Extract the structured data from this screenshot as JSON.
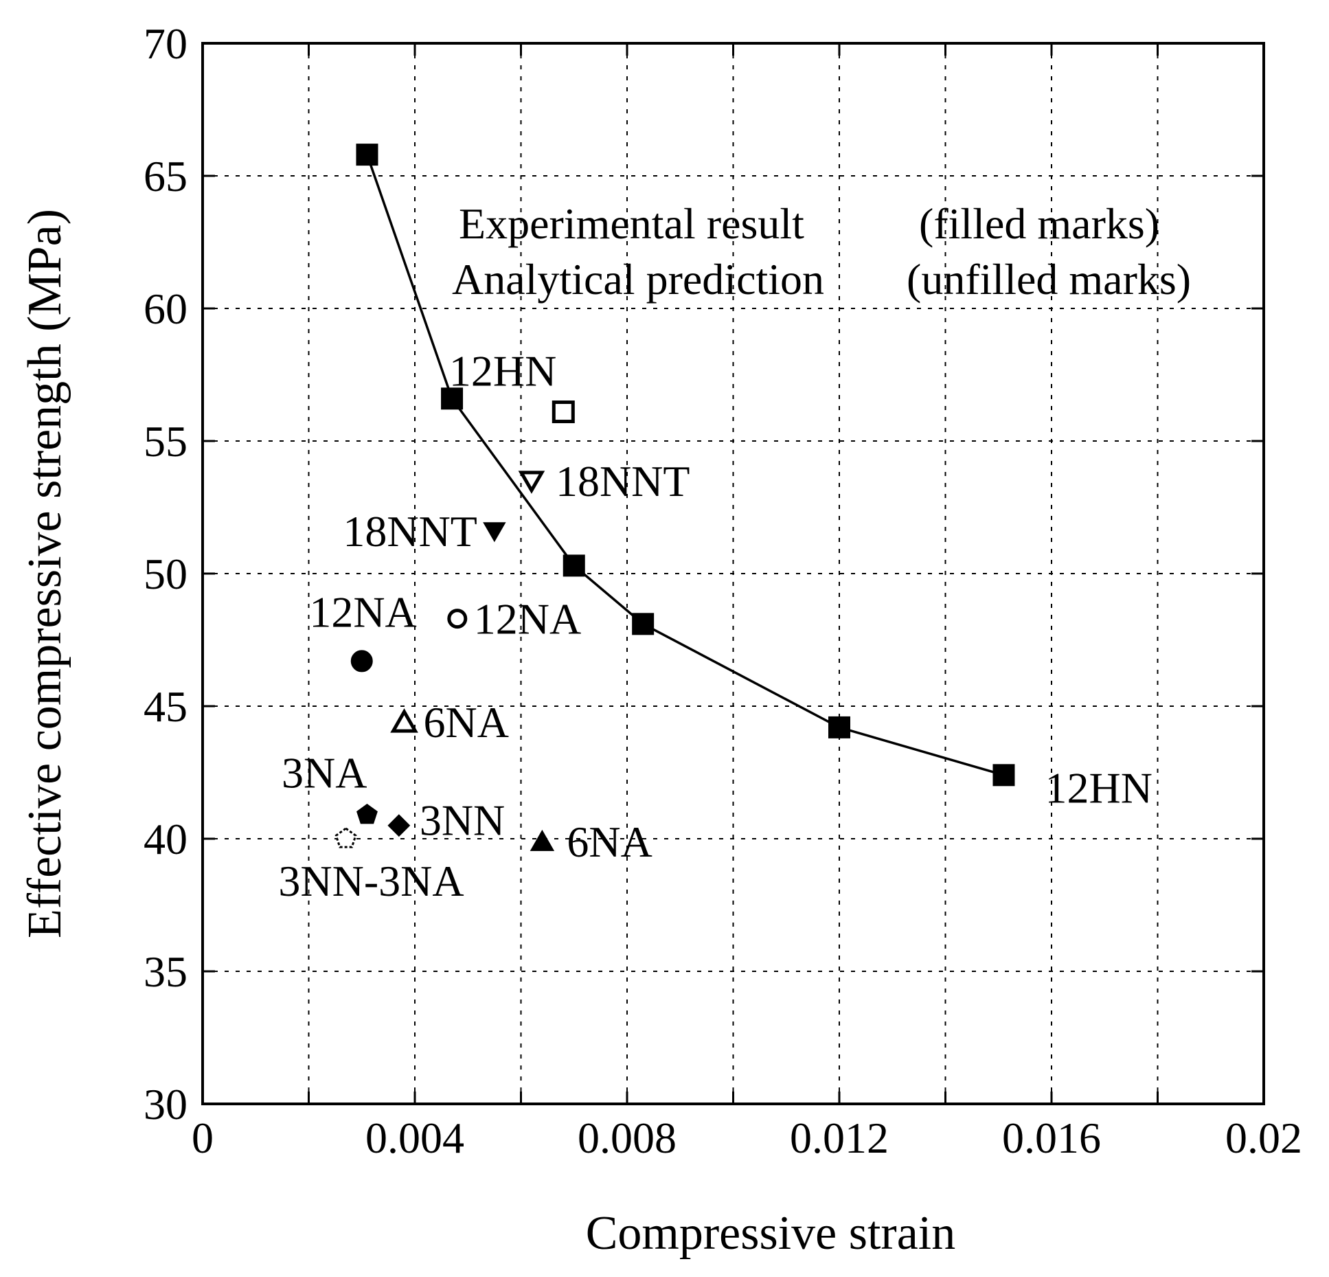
{
  "chart_data": {
    "type": "scatter",
    "xlabel": "Compressive strain",
    "ylabel": "Effective compressive strength (MPa)",
    "xlim": [
      0,
      0.02
    ],
    "ylim": [
      30,
      70
    ],
    "grid": true,
    "x_ticks": [
      "0",
      "0.004",
      "0.008",
      "0.012",
      "0.016",
      "0.02"
    ],
    "x_tick_values": [
      0,
      0.004,
      0.008,
      0.012,
      0.016,
      0.02
    ],
    "y_ticks": [
      "30",
      "35",
      "40",
      "45",
      "50",
      "55",
      "60",
      "65",
      "70"
    ],
    "y_tick_values": [
      30,
      35,
      40,
      45,
      50,
      55,
      60,
      65,
      70
    ],
    "legend": {
      "placement": "top-right",
      "lines": [
        {
          "name": "Experimental result",
          "note": "(filled marks)"
        },
        {
          "name": "Analytical prediction",
          "note": "(unfilled marks)"
        }
      ]
    },
    "series": [
      {
        "name": "12HN",
        "kind": "experimental",
        "marker": "square",
        "filled": true,
        "connected": true,
        "points": [
          {
            "x": 0.0031,
            "y": 65.8
          },
          {
            "x": 0.0047,
            "y": 56.6
          },
          {
            "x": 0.007,
            "y": 50.3
          },
          {
            "x": 0.0083,
            "y": 48.1
          },
          {
            "x": 0.012,
            "y": 44.2
          },
          {
            "x": 0.0151,
            "y": 42.4
          }
        ],
        "label": "12HN",
        "label_point_index": 5
      },
      {
        "name": "12HN",
        "kind": "analytical",
        "marker": "square",
        "filled": false,
        "points": [
          {
            "x": 0.0068,
            "y": 56.1
          }
        ],
        "label": "12HN"
      },
      {
        "name": "18NNT",
        "kind": "analytical",
        "marker": "triangle-down",
        "filled": false,
        "points": [
          {
            "x": 0.0062,
            "y": 53.5
          }
        ],
        "label": "18NNT"
      },
      {
        "name": "18NNT",
        "kind": "experimental",
        "marker": "triangle-down",
        "filled": true,
        "points": [
          {
            "x": 0.0055,
            "y": 51.6
          }
        ],
        "label": "18NNT"
      },
      {
        "name": "12NA",
        "kind": "analytical",
        "marker": "circle",
        "filled": false,
        "points": [
          {
            "x": 0.0048,
            "y": 48.3
          }
        ],
        "label": "12NA"
      },
      {
        "name": "12NA",
        "kind": "experimental",
        "marker": "circle",
        "filled": true,
        "points": [
          {
            "x": 0.003,
            "y": 46.7
          }
        ],
        "label": "12NA"
      },
      {
        "name": "6NA",
        "kind": "analytical",
        "marker": "triangle-up",
        "filled": false,
        "points": [
          {
            "x": 0.0038,
            "y": 44.4
          }
        ],
        "label": "6NA"
      },
      {
        "name": "6NA",
        "kind": "experimental",
        "marker": "triangle-up",
        "filled": true,
        "points": [
          {
            "x": 0.0064,
            "y": 39.9
          }
        ],
        "label": "6NA"
      },
      {
        "name": "3NA",
        "kind": "experimental",
        "marker": "pentagon",
        "filled": true,
        "points": [
          {
            "x": 0.0031,
            "y": 40.9
          }
        ],
        "label": "3NA"
      },
      {
        "name": "3NN",
        "kind": "experimental",
        "marker": "diamond",
        "filled": true,
        "points": [
          {
            "x": 0.0037,
            "y": 40.5
          }
        ],
        "label": "3NN"
      },
      {
        "name": "3NN-3NA",
        "kind": "analytical",
        "marker": "pentagon",
        "filled": false,
        "points": [
          {
            "x": 0.0027,
            "y": 40.0
          }
        ],
        "label": "3NN-3NA"
      }
    ]
  }
}
